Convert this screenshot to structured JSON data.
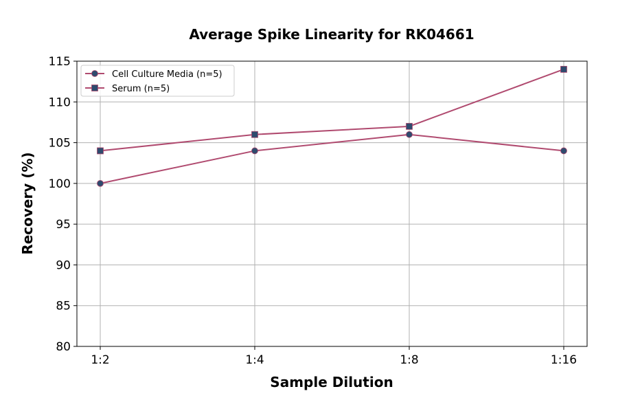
{
  "chart_data": {
    "type": "line",
    "title": "Average Spike Linearity for RK04661",
    "xlabel": "Sample Dilution",
    "ylabel": "Recovery (%)",
    "categories": [
      "1:2",
      "1:4",
      "1:8",
      "1:16"
    ],
    "ylim": [
      80,
      115
    ],
    "yticks": [
      80,
      85,
      90,
      95,
      100,
      105,
      110,
      115
    ],
    "grid": true,
    "legend_position": "top-left",
    "series": [
      {
        "name": "Cell Culture Media (n=5)",
        "values": [
          100,
          104,
          106,
          104
        ],
        "marker": "circle",
        "line_color": "#b04a6f",
        "marker_color": "#2f4b6e"
      },
      {
        "name": "Serum (n=5)",
        "values": [
          104,
          106,
          107,
          114
        ],
        "marker": "square",
        "line_color": "#b04a6f",
        "marker_color": "#2f4b6e"
      }
    ]
  }
}
